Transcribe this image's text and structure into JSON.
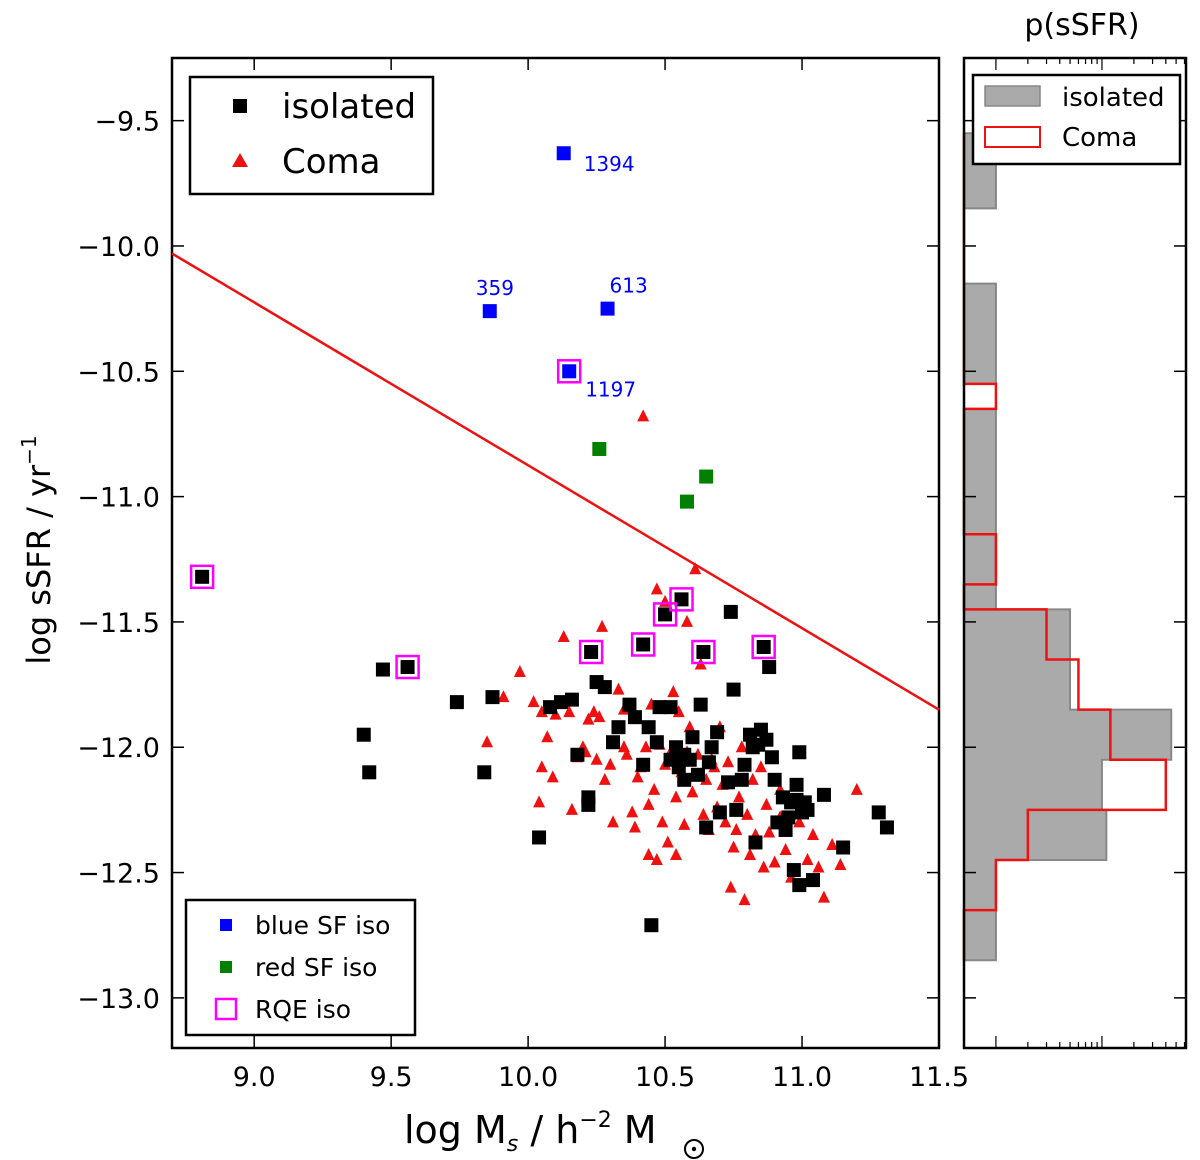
{
  "chart_data": [
    {
      "type": "scatter",
      "xlabel": "log M",
      "xlabel_sub": "s",
      "xlabel_mid": " / h",
      "xlabel_sup": "−2",
      "xlabel_unit": "M",
      "ylabel": "log sSFR / yr",
      "ylabel_sup": "−1",
      "xlim": [
        8.7,
        11.5
      ],
      "ylim": [
        -13.2,
        -9.25
      ],
      "xticks": [
        "9.0",
        "9.5",
        "10.0",
        "10.5",
        "11.0",
        "11.5"
      ],
      "xtick_values": [
        9.0,
        9.5,
        10.0,
        10.5,
        11.0,
        11.5
      ],
      "yticks": [
        "−9.5",
        "−10.0",
        "−10.5",
        "−11.0",
        "−11.5",
        "−12.0",
        "−12.5",
        "−13.0"
      ],
      "ytick_values": [
        -9.5,
        -10.0,
        -10.5,
        -11.0,
        -11.5,
        -12.0,
        -12.5,
        -13.0
      ],
      "division_line": {
        "color": "#ee1111",
        "points": [
          [
            8.7,
            -10.03
          ],
          [
            11.5,
            -11.85
          ]
        ]
      },
      "legend_main": [
        {
          "label": "isolated",
          "marker": "square",
          "color": "#000000"
        },
        {
          "label": "Coma",
          "marker": "triangle",
          "color": "#ee1111"
        }
      ],
      "legend_sub": [
        {
          "label": "blue SF iso",
          "marker": "square",
          "color": "#0000ff"
        },
        {
          "label": "red SF iso",
          "marker": "square",
          "color": "#008000"
        },
        {
          "label": "RQE iso",
          "marker": "open-square",
          "color": "#ff00ff"
        }
      ],
      "series": [
        {
          "name": "isolated",
          "marker": "square",
          "color": "#000000",
          "points": [
            [
              8.81,
              -11.32
            ],
            [
              9.4,
              -11.95
            ],
            [
              9.42,
              -12.1
            ],
            [
              9.47,
              -11.69
            ],
            [
              9.56,
              -11.68
            ],
            [
              9.74,
              -11.82
            ],
            [
              9.84,
              -12.1
            ],
            [
              9.87,
              -11.8
            ],
            [
              10.04,
              -12.36
            ],
            [
              10.08,
              -11.84
            ],
            [
              10.12,
              -11.82
            ],
            [
              10.16,
              -11.81
            ],
            [
              10.18,
              -12.03
            ],
            [
              10.22,
              -12.2
            ],
            [
              10.22,
              -12.23
            ],
            [
              10.23,
              -11.62
            ],
            [
              10.25,
              -11.74
            ],
            [
              10.28,
              -11.76
            ],
            [
              10.31,
              -11.98
            ],
            [
              10.33,
              -11.92
            ],
            [
              10.37,
              -11.83
            ],
            [
              10.39,
              -11.88
            ],
            [
              10.42,
              -11.59
            ],
            [
              10.42,
              -12.07
            ],
            [
              10.44,
              -11.92
            ],
            [
              10.45,
              -12.71
            ],
            [
              10.47,
              -11.98
            ],
            [
              10.48,
              -11.84
            ],
            [
              10.5,
              -11.47
            ],
            [
              10.52,
              -11.84
            ],
            [
              10.52,
              -12.05
            ],
            [
              10.54,
              -12.0
            ],
            [
              10.55,
              -12.08
            ],
            [
              10.56,
              -11.41
            ],
            [
              10.57,
              -12.03
            ],
            [
              10.57,
              -12.13
            ],
            [
              10.59,
              -12.05
            ],
            [
              10.6,
              -11.96
            ],
            [
              10.62,
              -12.11
            ],
            [
              10.63,
              -11.83
            ],
            [
              10.64,
              -11.62
            ],
            [
              10.65,
              -12.32
            ],
            [
              10.66,
              -12.06
            ],
            [
              10.67,
              -12.0
            ],
            [
              10.69,
              -11.94
            ],
            [
              10.7,
              -12.26
            ],
            [
              10.73,
              -12.14
            ],
            [
              10.74,
              -11.46
            ],
            [
              10.75,
              -11.77
            ],
            [
              10.76,
              -12.25
            ],
            [
              10.78,
              -12.13
            ],
            [
              10.79,
              -12.07
            ],
            [
              10.81,
              -11.95
            ],
            [
              10.82,
              -12.0
            ],
            [
              10.83,
              -12.38
            ],
            [
              10.84,
              -11.99
            ],
            [
              10.85,
              -11.93
            ],
            [
              10.86,
              -11.6
            ],
            [
              10.87,
              -11.97
            ],
            [
              10.88,
              -11.68
            ],
            [
              10.89,
              -12.04
            ],
            [
              10.9,
              -12.13
            ],
            [
              10.91,
              -12.3
            ],
            [
              10.93,
              -12.2
            ],
            [
              10.94,
              -12.33
            ],
            [
              10.95,
              -12.28
            ],
            [
              10.96,
              -12.22
            ],
            [
              10.97,
              -12.49
            ],
            [
              10.98,
              -12.21
            ],
            [
              10.99,
              -12.55
            ],
            [
              11.0,
              -12.26
            ],
            [
              11.02,
              -12.25
            ],
            [
              11.04,
              -12.53
            ],
            [
              11.08,
              -12.19
            ],
            [
              11.15,
              -12.4
            ],
            [
              11.28,
              -12.26
            ],
            [
              11.31,
              -12.32
            ],
            [
              10.98,
              -12.15
            ],
            [
              11.01,
              -12.22
            ],
            [
              10.99,
              -12.02
            ]
          ]
        },
        {
          "name": "Coma",
          "marker": "triangle",
          "color": "#ee1111",
          "points": [
            [
              9.85,
              -11.98
            ],
            [
              9.91,
              -11.8
            ],
            [
              9.97,
              -11.7
            ],
            [
              10.02,
              -11.82
            ],
            [
              10.04,
              -12.22
            ],
            [
              10.05,
              -11.86
            ],
            [
              10.05,
              -12.08
            ],
            [
              10.07,
              -11.96
            ],
            [
              10.09,
              -12.12
            ],
            [
              10.1,
              -11.87
            ],
            [
              10.13,
              -11.56
            ],
            [
              10.15,
              -11.86
            ],
            [
              10.16,
              -12.25
            ],
            [
              10.18,
              -12.04
            ],
            [
              10.2,
              -12.0
            ],
            [
              10.21,
              -12.02
            ],
            [
              10.22,
              -11.89
            ],
            [
              10.24,
              -11.86
            ],
            [
              10.25,
              -12.05
            ],
            [
              10.26,
              -11.88
            ],
            [
              10.27,
              -11.52
            ],
            [
              10.28,
              -12.13
            ],
            [
              10.3,
              -12.07
            ],
            [
              10.31,
              -12.3
            ],
            [
              10.33,
              -11.77
            ],
            [
              10.35,
              -11.85
            ],
            [
              10.36,
              -12.03
            ],
            [
              10.38,
              -12.26
            ],
            [
              10.39,
              -12.32
            ],
            [
              10.4,
              -12.12
            ],
            [
              10.41,
              -12.08
            ],
            [
              10.42,
              -10.68
            ],
            [
              10.43,
              -12.0
            ],
            [
              10.44,
              -12.23
            ],
            [
              10.45,
              -11.83
            ],
            [
              10.46,
              -12.17
            ],
            [
              10.47,
              -12.45
            ],
            [
              10.47,
              -11.37
            ],
            [
              10.48,
              -11.99
            ],
            [
              10.49,
              -12.3
            ],
            [
              10.5,
              -12.07
            ],
            [
              10.51,
              -12.38
            ],
            [
              10.52,
              -12.02
            ],
            [
              10.53,
              -11.78
            ],
            [
              10.54,
              -12.2
            ],
            [
              10.54,
              -12.43
            ],
            [
              10.55,
              -11.86
            ],
            [
              10.56,
              -12.1
            ],
            [
              10.57,
              -12.31
            ],
            [
              10.58,
              -12.02
            ],
            [
              10.59,
              -11.92
            ],
            [
              10.6,
              -12.18
            ],
            [
              10.61,
              -11.29
            ],
            [
              10.62,
              -12.03
            ],
            [
              10.63,
              -11.67
            ],
            [
              10.64,
              -12.27
            ],
            [
              10.65,
              -12.13
            ],
            [
              10.66,
              -12.33
            ],
            [
              10.67,
              -12.05
            ],
            [
              10.69,
              -12.24
            ],
            [
              10.7,
              -11.92
            ],
            [
              10.71,
              -12.15
            ],
            [
              10.72,
              -12.3
            ],
            [
              10.73,
              -12.06
            ],
            [
              10.74,
              -12.56
            ],
            [
              10.75,
              -12.4
            ],
            [
              10.76,
              -12.33
            ],
            [
              10.77,
              -12.2
            ],
            [
              10.78,
              -12.0
            ],
            [
              10.79,
              -12.61
            ],
            [
              10.8,
              -12.27
            ],
            [
              10.81,
              -12.43
            ],
            [
              10.82,
              -12.13
            ],
            [
              10.83,
              -12.35
            ],
            [
              10.85,
              -12.08
            ],
            [
              10.86,
              -12.48
            ],
            [
              10.87,
              -12.23
            ],
            [
              10.88,
              -12.34
            ],
            [
              10.9,
              -12.46
            ],
            [
              10.92,
              -12.17
            ],
            [
              10.94,
              -12.41
            ],
            [
              10.96,
              -12.52
            ],
            [
              10.99,
              -12.3
            ],
            [
              11.02,
              -12.45
            ],
            [
              11.04,
              -12.35
            ],
            [
              11.06,
              -12.48
            ],
            [
              11.08,
              -12.6
            ],
            [
              11.11,
              -12.39
            ],
            [
              11.14,
              -12.47
            ],
            [
              11.2,
              -12.17
            ],
            [
              10.58,
              -11.5
            ],
            [
              10.5,
              -11.42
            ],
            [
              10.35,
              -12.0
            ],
            [
              10.44,
              -12.43
            ],
            [
              10.68,
              -12.08
            ],
            [
              10.92,
              -12.28
            ]
          ]
        },
        {
          "name": "blue SF iso",
          "marker": "square",
          "color": "#0000ff",
          "points": [
            [
              10.13,
              -9.63
            ],
            [
              9.86,
              -10.26
            ],
            [
              10.29,
              -10.25
            ],
            [
              10.15,
              -10.5
            ]
          ],
          "labels": [
            "1394",
            "359",
            "613",
            "1197"
          ]
        },
        {
          "name": "red SF iso",
          "marker": "square",
          "color": "#008000",
          "points": [
            [
              10.26,
              -10.81
            ],
            [
              10.58,
              -11.02
            ],
            [
              10.65,
              -10.92
            ]
          ]
        },
        {
          "name": "RQE iso",
          "marker": "open-square",
          "color": "#ff00ff",
          "points": [
            [
              8.81,
              -11.32
            ],
            [
              9.56,
              -11.68
            ],
            [
              10.15,
              -10.5
            ],
            [
              10.23,
              -11.62
            ],
            [
              10.42,
              -11.59
            ],
            [
              10.5,
              -11.47
            ],
            [
              10.56,
              -11.41
            ],
            [
              10.64,
              -11.62
            ],
            [
              10.86,
              -11.6
            ]
          ]
        }
      ]
    },
    {
      "type": "histogram",
      "title": "p(sSFR)",
      "scale": "log",
      "ylim": [
        -13.2,
        -9.25
      ],
      "bin_edges": [
        -12.85,
        -12.75,
        -12.65,
        -12.55,
        -12.45,
        -12.35,
        -12.25,
        -12.15,
        -12.05,
        -11.95,
        -11.85,
        -11.75,
        -11.65,
        -11.55,
        -11.45,
        -11.35,
        -11.25,
        -11.15,
        -11.05,
        -10.95,
        -10.85,
        -10.75,
        -10.65,
        -10.55,
        -10.45,
        -10.35,
        -10.25,
        -10.15,
        -10.05,
        -9.95,
        -9.85,
        -9.75,
        -9.65,
        -9.55
      ],
      "legend": [
        {
          "label": "isolated",
          "style": "filled",
          "color": "#aaaaaa"
        },
        {
          "label": "Coma",
          "style": "step",
          "color": "#ee1111"
        }
      ],
      "series": [
        {
          "name": "isolated",
          "counts": [
            1,
            1,
            1,
            1,
            11,
            11,
            10,
            10,
            45,
            45,
            5,
            5,
            5,
            5,
            1,
            1,
            1,
            1,
            1,
            1,
            1,
            1,
            0,
            1,
            1,
            1,
            1,
            0,
            0,
            0,
            1,
            1,
            1
          ]
        },
        {
          "name": "Coma",
          "counts": [
            0,
            0,
            1,
            1,
            2,
            2,
            40,
            40,
            12,
            12,
            6,
            6,
            3,
            3,
            0,
            1,
            1,
            0,
            0,
            0,
            0,
            0,
            1,
            0,
            0,
            0,
            0,
            0,
            0,
            0,
            0,
            0,
            0
          ]
        }
      ]
    }
  ]
}
